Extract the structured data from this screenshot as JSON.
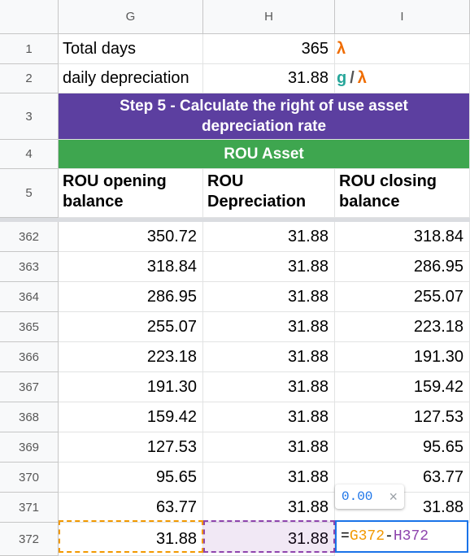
{
  "columns": [
    "G",
    "H",
    "I"
  ],
  "rows": {
    "r1": {
      "num": "1",
      "label": "Total days",
      "value": "365",
      "unit_icon": "λ"
    },
    "r2": {
      "num": "2",
      "label": "daily depreciation",
      "value": "31.88",
      "unit_g": "g",
      "unit_slash": "/",
      "unit_lambda": "λ"
    },
    "r3": {
      "num": "3",
      "title": "Step 5 - Calculate the right of use asset depreciation rate"
    },
    "r4": {
      "num": "4",
      "title": "ROU Asset"
    },
    "r5": {
      "num": "5",
      "col_g": "ROU opening balance",
      "col_h": "ROU Depreciation",
      "col_i": "ROU closing balance"
    }
  },
  "data_rows": [
    {
      "num": "362",
      "g": "350.72",
      "h": "31.88",
      "i": "318.84"
    },
    {
      "num": "363",
      "g": "318.84",
      "h": "31.88",
      "i": "286.95"
    },
    {
      "num": "364",
      "g": "286.95",
      "h": "31.88",
      "i": "255.07"
    },
    {
      "num": "365",
      "g": "255.07",
      "h": "31.88",
      "i": "223.18"
    },
    {
      "num": "366",
      "g": "223.18",
      "h": "31.88",
      "i": "191.30"
    },
    {
      "num": "367",
      "g": "191.30",
      "h": "31.88",
      "i": "159.42"
    },
    {
      "num": "368",
      "g": "159.42",
      "h": "31.88",
      "i": "127.53"
    },
    {
      "num": "369",
      "g": "127.53",
      "h": "31.88",
      "i": "95.65"
    },
    {
      "num": "370",
      "g": "95.65",
      "h": "31.88",
      "i": "63.77"
    },
    {
      "num": "371",
      "g": "63.77",
      "h": "31.88",
      "i": "31.88"
    },
    {
      "num": "372",
      "g": "31.88",
      "h": "31.88",
      "i": ""
    }
  ],
  "editing": {
    "eq": "=",
    "ref_g": "G372",
    "minus": "-",
    "ref_h": "H372"
  },
  "tooltip": {
    "value": "0.00",
    "close": "×"
  },
  "colors": {
    "purple_header": "#5c3fa0",
    "green_header": "#3ea64f",
    "lambda": "#ef6c00",
    "g_symbol": "#26a69a",
    "active_border": "#1a73e8"
  }
}
